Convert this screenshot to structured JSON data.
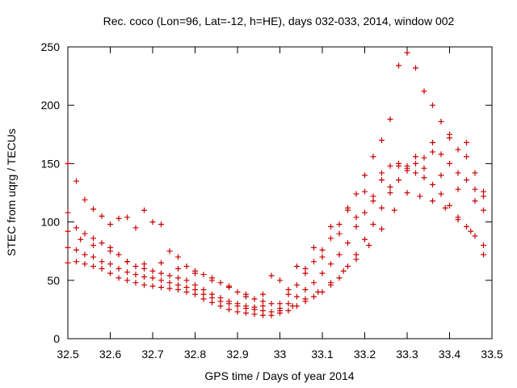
{
  "chart_data": {
    "type": "scatter",
    "title": "Rec. coco (Lon=96, Lat=-12, h=HE), days 032-033, 2014, window 002",
    "xlabel": "GPS time / Days of year 2014",
    "ylabel": "STEC from uqrg / TECUs",
    "xlim": [
      32.5,
      33.5
    ],
    "ylim": [
      0,
      250
    ],
    "xticks": [
      "32.5",
      "32.6",
      "32.7",
      "32.8",
      "32.9",
      "33",
      "33.1",
      "33.2",
      "33.3",
      "33.4",
      "33.5"
    ],
    "yticks": [
      "0",
      "50",
      "100",
      "150",
      "200",
      "250"
    ],
    "grid": false,
    "marker": "+",
    "color": "#cc0000",
    "series": [
      {
        "values": [
          [
            32.5,
            65
          ],
          [
            32.52,
            66
          ],
          [
            32.54,
            64
          ],
          [
            32.56,
            62
          ],
          [
            32.58,
            60
          ],
          [
            32.6,
            56
          ],
          [
            32.62,
            52
          ],
          [
            32.64,
            50
          ],
          [
            32.66,
            48
          ],
          [
            32.68,
            46
          ],
          [
            32.7,
            45
          ],
          [
            32.72,
            44
          ],
          [
            32.74,
            43
          ],
          [
            32.76,
            42
          ],
          [
            32.78,
            40
          ],
          [
            32.8,
            38
          ],
          [
            32.82,
            34
          ],
          [
            32.84,
            31
          ],
          [
            32.86,
            28
          ],
          [
            32.88,
            25
          ],
          [
            32.9,
            23
          ],
          [
            32.92,
            22
          ],
          [
            32.94,
            21
          ],
          [
            32.96,
            20
          ],
          [
            32.98,
            20
          ]
        ]
      },
      {
        "values": [
          [
            32.5,
            78
          ],
          [
            32.52,
            76
          ],
          [
            32.54,
            72
          ],
          [
            32.56,
            70
          ],
          [
            32.58,
            66
          ],
          [
            32.6,
            64
          ],
          [
            32.62,
            60
          ],
          [
            32.64,
            57
          ],
          [
            32.66,
            55
          ],
          [
            32.68,
            53
          ],
          [
            32.7,
            52
          ],
          [
            32.72,
            50
          ],
          [
            32.74,
            48
          ],
          [
            32.76,
            46
          ],
          [
            32.78,
            44
          ],
          [
            32.8,
            42
          ],
          [
            32.82,
            38
          ],
          [
            32.84,
            35
          ],
          [
            32.86,
            32
          ],
          [
            32.88,
            30
          ],
          [
            32.9,
            28
          ],
          [
            32.92,
            26
          ],
          [
            32.94,
            25
          ],
          [
            32.96,
            24
          ],
          [
            32.98,
            23
          ]
        ]
      },
      {
        "values": [
          [
            32.5,
            92
          ],
          [
            32.52,
            95
          ],
          [
            32.54,
            90
          ],
          [
            32.56,
            86
          ],
          [
            32.58,
            82
          ],
          [
            32.6,
            78
          ],
          [
            32.62,
            72
          ],
          [
            32.64,
            66
          ],
          [
            32.66,
            62
          ],
          [
            32.68,
            60
          ],
          [
            32.7,
            58
          ],
          [
            32.72,
            56
          ],
          [
            32.74,
            54
          ],
          [
            32.76,
            52
          ],
          [
            32.78,
            50
          ],
          [
            32.8,
            46
          ],
          [
            32.82,
            42
          ],
          [
            32.84,
            38
          ],
          [
            32.86,
            35
          ],
          [
            32.88,
            32
          ],
          [
            32.9,
            30
          ],
          [
            32.92,
            28
          ],
          [
            32.94,
            27
          ],
          [
            32.96,
            28
          ],
          [
            32.98,
            30
          ]
        ]
      },
      {
        "values": [
          [
            32.5,
            108
          ],
          [
            32.52,
            135
          ],
          [
            32.54,
            119
          ],
          [
            32.56,
            111
          ],
          [
            32.58,
            105
          ],
          [
            32.6,
            98
          ],
          [
            32.62,
            103
          ],
          [
            32.64,
            104
          ],
          [
            32.66,
            95
          ],
          [
            32.68,
            110
          ],
          [
            32.7,
            100
          ],
          [
            32.72,
            98
          ],
          [
            32.74,
            75
          ],
          [
            32.76,
            70
          ],
          [
            32.78,
            62
          ],
          [
            32.8,
            58
          ],
          [
            32.82,
            55
          ],
          [
            32.84,
            52
          ],
          [
            32.86,
            48
          ],
          [
            32.88,
            45
          ],
          [
            32.9,
            40
          ],
          [
            32.92,
            36
          ],
          [
            32.94,
            34
          ],
          [
            32.96,
            38
          ],
          [
            32.98,
            54
          ]
        ]
      },
      {
        "values": [
          [
            32.5,
            150
          ],
          [
            32.53,
            85
          ],
          [
            32.56,
            80
          ],
          [
            32.6,
            75
          ],
          [
            32.64,
            66
          ],
          [
            32.68,
            64
          ],
          [
            32.72,
            65
          ],
          [
            32.76,
            60
          ],
          [
            32.8,
            56
          ],
          [
            32.84,
            50
          ],
          [
            32.88,
            44
          ],
          [
            32.92,
            38
          ],
          [
            32.96,
            32
          ]
        ]
      },
      {
        "values": [
          [
            33.0,
            22
          ],
          [
            33.02,
            24
          ],
          [
            33.04,
            28
          ],
          [
            33.06,
            32
          ],
          [
            33.08,
            36
          ],
          [
            33.1,
            40
          ],
          [
            33.12,
            46
          ],
          [
            33.14,
            52
          ],
          [
            33.16,
            62
          ],
          [
            33.18,
            72
          ],
          [
            33.2,
            85
          ],
          [
            33.22,
            98
          ],
          [
            33.24,
            112
          ],
          [
            33.26,
            125
          ],
          [
            33.28,
            136
          ],
          [
            33.3,
            144
          ],
          [
            33.32,
            150
          ],
          [
            33.34,
            155
          ],
          [
            33.36,
            160
          ],
          [
            33.38,
            158
          ],
          [
            33.4,
            150
          ],
          [
            33.42,
            142
          ],
          [
            33.44,
            136
          ],
          [
            33.46,
            128
          ],
          [
            33.48,
            110
          ]
        ]
      },
      {
        "values": [
          [
            33.0,
            26
          ],
          [
            33.02,
            30
          ],
          [
            33.04,
            36
          ],
          [
            33.06,
            42
          ],
          [
            33.08,
            48
          ],
          [
            33.1,
            56
          ],
          [
            33.12,
            64
          ],
          [
            33.14,
            72
          ],
          [
            33.16,
            82
          ],
          [
            33.18,
            96
          ],
          [
            33.2,
            108
          ],
          [
            33.22,
            122
          ],
          [
            33.24,
            136
          ],
          [
            33.26,
            148
          ],
          [
            33.28,
            150
          ],
          [
            33.3,
            146
          ],
          [
            33.32,
            142
          ],
          [
            33.34,
            138
          ],
          [
            33.36,
            132
          ],
          [
            33.38,
            124
          ],
          [
            33.4,
            114
          ],
          [
            33.42,
            104
          ],
          [
            33.44,
            96
          ],
          [
            33.46,
            88
          ],
          [
            33.48,
            80
          ]
        ]
      },
      {
        "values": [
          [
            33.0,
            30
          ],
          [
            33.02,
            38
          ],
          [
            33.04,
            46
          ],
          [
            33.06,
            56
          ],
          [
            33.08,
            66
          ],
          [
            33.1,
            76
          ],
          [
            33.12,
            86
          ],
          [
            33.14,
            98
          ],
          [
            33.16,
            110
          ],
          [
            33.18,
            124
          ],
          [
            33.2,
            140
          ],
          [
            33.22,
            156
          ],
          [
            33.24,
            170
          ],
          [
            33.26,
            188
          ],
          [
            33.28,
            234
          ],
          [
            33.3,
            245
          ],
          [
            33.32,
            232
          ],
          [
            33.34,
            212
          ],
          [
            33.36,
            200
          ],
          [
            33.38,
            186
          ],
          [
            33.4,
            172
          ],
          [
            33.42,
            162
          ],
          [
            33.44,
            156
          ],
          [
            33.46,
            142
          ],
          [
            33.48,
            122
          ]
        ]
      },
      {
        "values": [
          [
            33.0,
            50
          ],
          [
            33.04,
            62
          ],
          [
            33.08,
            78
          ],
          [
            33.12,
            96
          ],
          [
            33.16,
            112
          ],
          [
            33.2,
            126
          ],
          [
            33.24,
            142
          ],
          [
            33.28,
            148
          ],
          [
            33.32,
            156
          ],
          [
            33.36,
            168
          ],
          [
            33.4,
            175
          ],
          [
            33.44,
            168
          ],
          [
            33.48,
            126
          ]
        ]
      },
      {
        "values": [
          [
            33.0,
            24
          ],
          [
            33.03,
            28
          ],
          [
            33.06,
            34
          ],
          [
            33.09,
            40
          ],
          [
            33.12,
            48
          ],
          [
            33.15,
            58
          ],
          [
            33.18,
            68
          ],
          [
            33.21,
            80
          ],
          [
            33.24,
            94
          ],
          [
            33.27,
            110
          ],
          [
            33.3,
            125
          ],
          [
            33.33,
            122
          ],
          [
            33.36,
            118
          ],
          [
            33.39,
            112
          ],
          [
            33.42,
            102
          ],
          [
            33.45,
            92
          ],
          [
            33.48,
            72
          ]
        ]
      },
      {
        "values": [
          [
            33.02,
            42
          ],
          [
            33.06,
            60
          ],
          [
            33.1,
            70
          ],
          [
            33.14,
            90
          ],
          [
            33.18,
            104
          ],
          [
            33.22,
            118
          ],
          [
            33.26,
            130
          ],
          [
            33.3,
            148
          ],
          [
            33.34,
            146
          ],
          [
            33.38,
            140
          ],
          [
            33.42,
            128
          ],
          [
            33.46,
            118
          ]
        ]
      }
    ]
  }
}
